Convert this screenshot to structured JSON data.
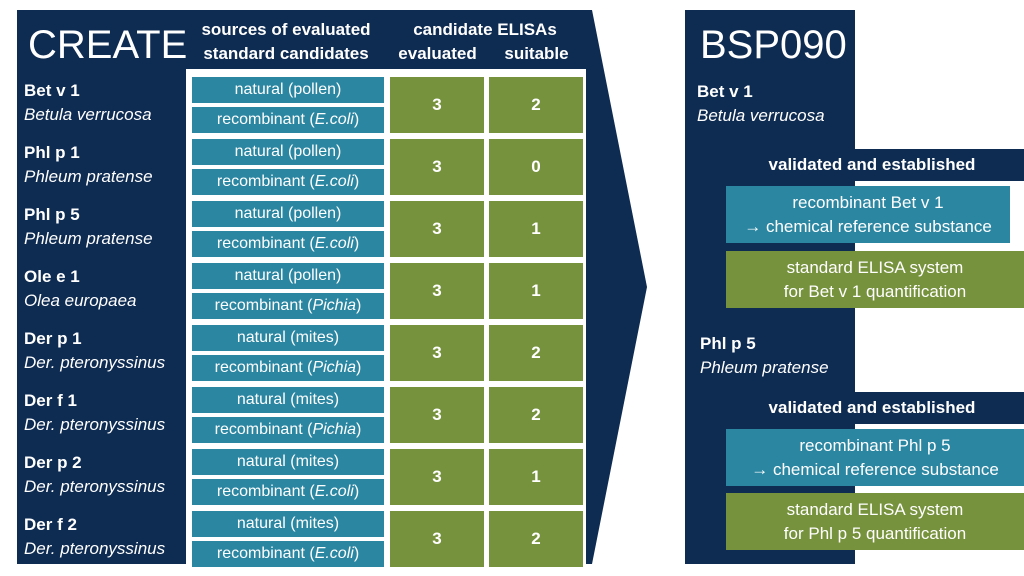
{
  "left_title": "CREATE",
  "header": {
    "sources_line1": "sources of evaluated",
    "sources_line2": "standard candidates",
    "elisa_title": "candidate ELISAs",
    "col_evaluated": "evaluated",
    "col_suitable": "suitable"
  },
  "rows": [
    {
      "allergen": "Bet v 1",
      "species": "Betula verrucosa",
      "natural": "natural (pollen)",
      "rec_prefix": "recombinant (",
      "rec_host": "E.coli",
      "rec_suffix": ")",
      "evaluated": "3",
      "suitable": "2"
    },
    {
      "allergen": "Phl p 1",
      "species": "Phleum pratense",
      "natural": "natural (pollen)",
      "rec_prefix": "recombinant (",
      "rec_host": "E.coli",
      "rec_suffix": ")",
      "evaluated": "3",
      "suitable": "0"
    },
    {
      "allergen": "Phl p 5",
      "species": "Phleum pratense",
      "natural": "natural (pollen)",
      "rec_prefix": "recombinant (",
      "rec_host": "E.coli",
      "rec_suffix": ")",
      "evaluated": "3",
      "suitable": "1"
    },
    {
      "allergen": "Ole e 1",
      "species": "Olea europaea",
      "natural": "natural (pollen)",
      "rec_prefix": "recombinant (",
      "rec_host": "Pichia",
      "rec_suffix": ")",
      "evaluated": "3",
      "suitable": "1"
    },
    {
      "allergen": "Der p 1",
      "species": "Der. pteronyssinus",
      "natural": "natural (mites)",
      "rec_prefix": "recombinant (",
      "rec_host": "Pichia",
      "rec_suffix": ")",
      "evaluated": "3",
      "suitable": "2"
    },
    {
      "allergen": "Der f 1",
      "species": "Der. pteronyssinus",
      "natural": "natural (mites)",
      "rec_prefix": "recombinant (",
      "rec_host": "Pichia",
      "rec_suffix": ")",
      "evaluated": "3",
      "suitable": "2"
    },
    {
      "allergen": "Der p 2",
      "species": "Der. pteronyssinus",
      "natural": "natural (mites)",
      "rec_prefix": "recombinant (",
      "rec_host": "E.coli",
      "rec_suffix": ")",
      "evaluated": "3",
      "suitable": "1"
    },
    {
      "allergen": "Der f 2",
      "species": "Der. pteronyssinus",
      "natural": "natural (mites)",
      "rec_prefix": "recombinant (",
      "rec_host": "E.coli",
      "rec_suffix": ")",
      "evaluated": "3",
      "suitable": "2"
    }
  ],
  "right": {
    "title": "BSP090",
    "sections": [
      {
        "allergen": "Bet v 1",
        "species": "Betula verrucosa",
        "status": "validated and established",
        "ref_line1": "recombinant Bet v 1",
        "ref_line2": "→ chemical reference substance",
        "elisa_line1": "standard ELISA system",
        "elisa_line2": "for Bet v 1 quantification"
      },
      {
        "allergen": "Phl p 5",
        "species": "Phleum pratense",
        "status": "validated and established",
        "ref_line1": "recombinant Phl p 5",
        "ref_line2": "→ chemical reference substance",
        "elisa_line1": "standard ELISA system",
        "elisa_line2": "for Phl p 5 quantification"
      }
    ]
  },
  "colors": {
    "navy": "#0e2b52",
    "teal": "#2b86a2",
    "green": "#76923c"
  }
}
